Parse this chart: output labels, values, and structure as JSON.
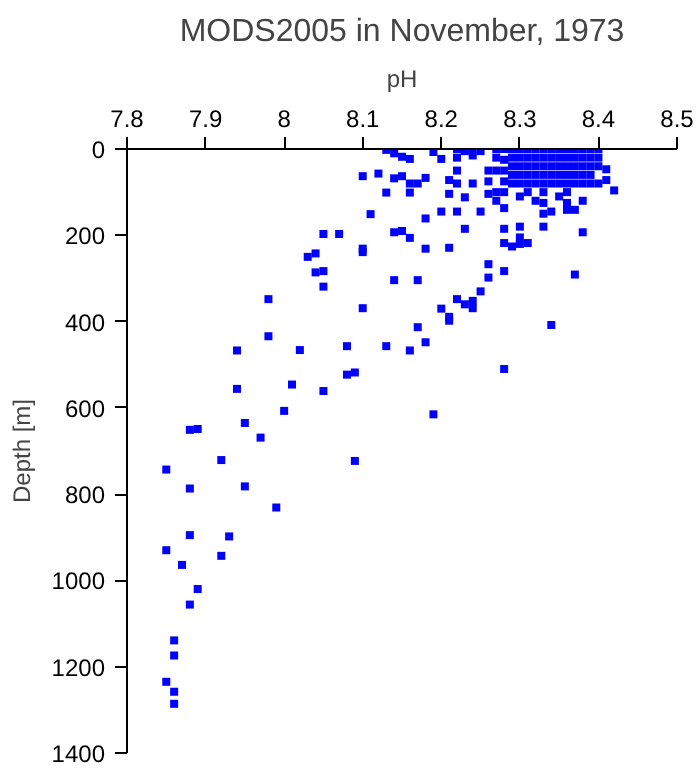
{
  "chart_data": {
    "type": "scatter",
    "title": "MODS2005 in November, 1973",
    "xlabel": "pH",
    "ylabel": "Depth [m]",
    "xlim": [
      7.8,
      8.5
    ],
    "xticks": [
      7.8,
      7.9,
      8,
      8.1,
      8.2,
      8.3,
      8.4,
      8.5
    ],
    "ylim": [
      1400,
      0
    ],
    "yticks": [
      0,
      200,
      400,
      600,
      800,
      1000,
      1200,
      1400
    ],
    "marker": "square",
    "grid": false,
    "series": [
      {
        "color": "#0000ff",
        "x": [
          7.85,
          7.88,
          7.93,
          7.92,
          7.87,
          7.89,
          7.88,
          7.86,
          7.86,
          7.85,
          7.86,
          7.86,
          7.85,
          7.88,
          7.89,
          7.88,
          7.92,
          7.95,
          7.99,
          7.94,
          7.94,
          7.95,
          7.97,
          7.98,
          8.0,
          8.01,
          8.02,
          8.05,
          8.08,
          8.08,
          8.09,
          8.09,
          8.13,
          8.16,
          8.17,
          8.18,
          8.19,
          8.21,
          8.28,
          8.34,
          7.98,
          8.1,
          8.05,
          8.07,
          8.03,
          8.04,
          8.04,
          8.05,
          8.05,
          8.1,
          8.1,
          8.11,
          8.1,
          8.12,
          8.13,
          8.13,
          8.14,
          8.15,
          8.16,
          8.14,
          8.15,
          8.16,
          8.16,
          8.17,
          8.18,
          8.19,
          8.2,
          8.14,
          8.15,
          8.16,
          8.14,
          8.17,
          8.18,
          8.18,
          8.2,
          8.21,
          8.21,
          8.21,
          8.22,
          8.23,
          8.22,
          8.22,
          8.22,
          8.23,
          8.24,
          8.24,
          8.25,
          8.26,
          8.26,
          8.26,
          8.27,
          8.28,
          8.28,
          8.28,
          8.28,
          8.26,
          8.26,
          8.24,
          8.23,
          8.22,
          8.24,
          8.25,
          8.21,
          8.2,
          8.3,
          8.3,
          8.3,
          8.31,
          8.29,
          8.33,
          8.33,
          8.33,
          8.34,
          8.36,
          8.37,
          8.38,
          8.37,
          8.42,
          8.41,
          8.41,
          8.4,
          8.22,
          8.23,
          8.24,
          8.25,
          8.27,
          8.27,
          8.27,
          8.27,
          8.28,
          8.28,
          8.28,
          8.28,
          8.28,
          8.3,
          8.31,
          8.32,
          8.33,
          8.35,
          8.36,
          8.38,
          8.36,
          8.4,
          8.4,
          8.4,
          8.29,
          8.29,
          8.29,
          8.29,
          8.29,
          8.3,
          8.3,
          8.3,
          8.3,
          8.3,
          8.31,
          8.31,
          8.31,
          8.31,
          8.31,
          8.32,
          8.32,
          8.32,
          8.32,
          8.32,
          8.33,
          8.33,
          8.33,
          8.33,
          8.33,
          8.34,
          8.34,
          8.34,
          8.34,
          8.34,
          8.35,
          8.35,
          8.35,
          8.35,
          8.35,
          8.36,
          8.36,
          8.36,
          8.36,
          8.36,
          8.37,
          8.37,
          8.37,
          8.37,
          8.37,
          8.38,
          8.38,
          8.38,
          8.38,
          8.38,
          8.39,
          8.39,
          8.39,
          8.39,
          8.39
        ],
        "values": [
          930,
          895,
          898,
          943,
          964,
          1020,
          1056,
          1139,
          1174,
          1235,
          1258,
          1286,
          743,
          651,
          649,
          787,
          721,
          782,
          831,
          467,
          556,
          635,
          669,
          434,
          607,
          546,
          466,
          561,
          457,
          523,
          518,
          723,
          457,
          467,
          413,
          448,
          615,
          398,
          510,
          408,
          348,
          369,
          197,
          197,
          250,
          242,
          286,
          283,
          319,
          231,
          239,
          151,
          63,
          57,
          101,
          2,
          10,
          18,
          23,
          68,
          63,
          80,
          101,
          80,
          67,
          7,
          23,
          193,
          190,
          206,
          304,
          304,
          231,
          161,
          145,
          229,
          72,
          104,
          145,
          185,
          20,
          50,
          80,
          112,
          15,
          80,
          145,
          50,
          75,
          104,
          120,
          137,
          185,
          218,
          283,
          267,
          298,
          369,
          360,
          348,
          352,
          330,
          389,
          370,
          180,
          205,
          220,
          218,
          226,
          125,
          150,
          180,
          145,
          141,
          141,
          193,
          291,
          96,
          47,
          72,
          80,
          0,
          5,
          0,
          5,
          0,
          20,
          50,
          100,
          0,
          25,
          50,
          75,
          100,
          110,
          100,
          120,
          100,
          110,
          125,
          120,
          100,
          0,
          20,
          40,
          0,
          20,
          40,
          60,
          80,
          0,
          20,
          40,
          60,
          80,
          0,
          20,
          40,
          60,
          80,
          0,
          20,
          40,
          60,
          80,
          0,
          20,
          40,
          60,
          80,
          0,
          20,
          40,
          60,
          80,
          0,
          20,
          40,
          60,
          80,
          0,
          20,
          40,
          60,
          80,
          0,
          20,
          40,
          60,
          80,
          0,
          20,
          40,
          60,
          80,
          0,
          20,
          40,
          60,
          80
        ]
      }
    ]
  }
}
